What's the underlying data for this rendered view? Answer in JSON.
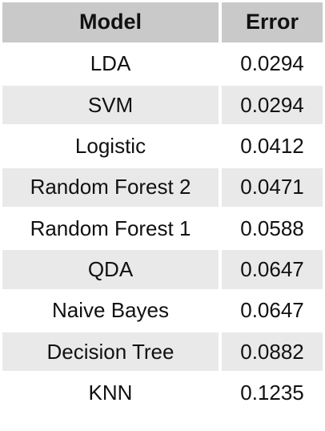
{
  "chart_data": {
    "type": "table",
    "columns": [
      "Model",
      "Error"
    ],
    "rows": [
      [
        "LDA",
        "0.0294"
      ],
      [
        "SVM",
        "0.0294"
      ],
      [
        "Logistic",
        "0.0412"
      ],
      [
        "Random Forest 2",
        "0.0471"
      ],
      [
        "Random Forest 1",
        "0.0588"
      ],
      [
        "QDA",
        "0.0647"
      ],
      [
        "Naive Bayes",
        "0.0647"
      ],
      [
        "Decision Tree",
        "0.0882"
      ],
      [
        "KNN",
        "0.1235"
      ]
    ],
    "colors": {
      "header_bg": "#c9c9c9",
      "row_alt_bg": "#e9e9e9",
      "row_bg": "#ffffff",
      "text": "#111111"
    }
  }
}
